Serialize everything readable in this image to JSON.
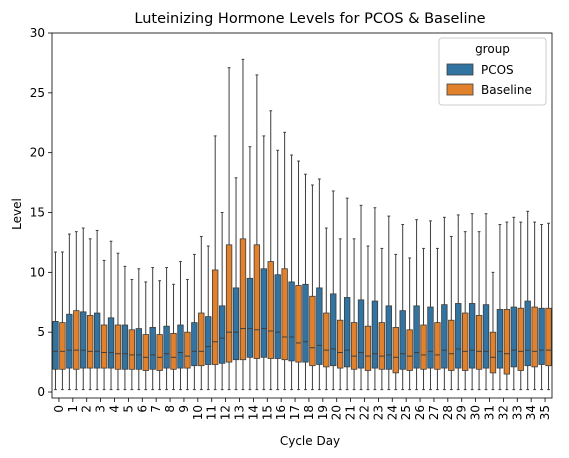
{
  "chart_data": {
    "type": "box",
    "title": "Luteinizing Hormone Levels for PCOS & Baseline",
    "xlabel": "Cycle Day",
    "ylabel": "Level",
    "ylim": [
      -0.5,
      30
    ],
    "yticks": [
      0,
      5,
      10,
      15,
      20,
      25,
      30
    ],
    "categories": [
      "0",
      "1",
      "2",
      "3",
      "4",
      "5",
      "6",
      "7",
      "8",
      "9",
      "10",
      "11",
      "12",
      "13",
      "14",
      "15",
      "16",
      "17",
      "18",
      "19",
      "20",
      "21",
      "22",
      "23",
      "24",
      "25",
      "26",
      "27",
      "28",
      "29",
      "30",
      "31",
      "32",
      "33",
      "34",
      "35"
    ],
    "legend": {
      "title": "group",
      "position": "top-right"
    },
    "grid": false,
    "series": [
      {
        "name": "PCOS",
        "color": "#3274a1",
        "boxes": [
          {
            "low": 0.2,
            "q1": 1.9,
            "med": 3.4,
            "q3": 5.9,
            "high": 11.7
          },
          {
            "low": 0.2,
            "q1": 2.0,
            "med": 3.5,
            "q3": 6.5,
            "high": 13.2
          },
          {
            "low": 0.2,
            "q1": 2.0,
            "med": 3.5,
            "q3": 6.7,
            "high": 13.7
          },
          {
            "low": 0.2,
            "q1": 2.0,
            "med": 3.4,
            "q3": 6.6,
            "high": 13.5
          },
          {
            "low": 0.2,
            "q1": 2.0,
            "med": 3.3,
            "q3": 6.2,
            "high": 12.6
          },
          {
            "low": 0.2,
            "q1": 1.9,
            "med": 3.2,
            "q3": 5.6,
            "high": 10.5
          },
          {
            "low": 0.2,
            "q1": 1.9,
            "med": 3.1,
            "q3": 5.3,
            "high": 10.3
          },
          {
            "low": 0.2,
            "q1": 1.9,
            "med": 3.1,
            "q3": 5.4,
            "high": 10.4
          },
          {
            "low": 0.2,
            "q1": 2.0,
            "med": 3.2,
            "q3": 5.5,
            "high": 10.4
          },
          {
            "low": 0.2,
            "q1": 2.0,
            "med": 3.3,
            "q3": 5.6,
            "high": 10.9
          },
          {
            "low": 0.2,
            "q1": 2.2,
            "med": 3.4,
            "q3": 5.8,
            "high": 11.5
          },
          {
            "low": 0.2,
            "q1": 2.3,
            "med": 3.8,
            "q3": 6.3,
            "high": 12.2
          },
          {
            "low": 0.2,
            "q1": 2.4,
            "med": 4.5,
            "q3": 7.2,
            "high": 15.0
          },
          {
            "low": 0.2,
            "q1": 2.7,
            "med": 5.0,
            "q3": 8.7,
            "high": 17.9
          },
          {
            "low": 0.2,
            "q1": 2.9,
            "med": 5.3,
            "q3": 9.5,
            "high": 20.5
          },
          {
            "low": 0.2,
            "q1": 2.9,
            "med": 5.3,
            "q3": 10.3,
            "high": 21.4
          },
          {
            "low": 0.2,
            "q1": 2.8,
            "med": 5.0,
            "q3": 9.8,
            "high": 20.2
          },
          {
            "low": 0.2,
            "q1": 2.6,
            "med": 4.6,
            "q3": 9.2,
            "high": 19.8
          },
          {
            "low": 0.2,
            "q1": 2.5,
            "med": 4.2,
            "q3": 9.0,
            "high": 18.2
          },
          {
            "low": 0.2,
            "q1": 2.3,
            "med": 3.9,
            "q3": 8.7,
            "high": 17.8
          },
          {
            "low": 0.2,
            "q1": 2.2,
            "med": 3.6,
            "q3": 8.2,
            "high": 16.8
          },
          {
            "low": 0.2,
            "q1": 2.1,
            "med": 3.5,
            "q3": 7.9,
            "high": 16.2
          },
          {
            "low": 0.2,
            "q1": 2.0,
            "med": 3.3,
            "q3": 7.7,
            "high": 15.6
          },
          {
            "low": 0.2,
            "q1": 2.0,
            "med": 3.2,
            "q3": 7.6,
            "high": 15.4
          },
          {
            "low": 0.2,
            "q1": 1.9,
            "med": 3.1,
            "q3": 7.2,
            "high": 14.7
          },
          {
            "low": 0.2,
            "q1": 1.9,
            "med": 3.2,
            "q3": 6.8,
            "high": 14.0
          },
          {
            "low": 0.2,
            "q1": 2.0,
            "med": 3.3,
            "q3": 7.2,
            "high": 14.4
          },
          {
            "low": 0.2,
            "q1": 2.0,
            "med": 3.4,
            "q3": 7.1,
            "high": 14.3
          },
          {
            "low": 0.2,
            "q1": 2.0,
            "med": 3.5,
            "q3": 7.3,
            "high": 14.6
          },
          {
            "low": 0.2,
            "q1": 2.0,
            "med": 3.6,
            "q3": 7.4,
            "high": 14.8
          },
          {
            "low": 0.2,
            "q1": 2.0,
            "med": 3.5,
            "q3": 7.4,
            "high": 14.9
          },
          {
            "low": 0.2,
            "q1": 2.0,
            "med": 3.4,
            "q3": 7.3,
            "high": 14.9
          },
          {
            "low": 0.2,
            "q1": 2.0,
            "med": 3.4,
            "q3": 6.9,
            "high": 14.0
          },
          {
            "low": 0.2,
            "q1": 2.1,
            "med": 3.5,
            "q3": 7.1,
            "high": 14.6
          },
          {
            "low": 0.2,
            "q1": 2.2,
            "med": 3.5,
            "q3": 7.6,
            "high": 15.1
          },
          {
            "low": 0.2,
            "q1": 2.3,
            "med": 3.5,
            "q3": 7.0,
            "high": 14.0
          }
        ]
      },
      {
        "name": "Baseline",
        "color": "#e1812c",
        "boxes": [
          {
            "low": 0.2,
            "q1": 1.9,
            "med": 3.4,
            "q3": 5.8,
            "high": 11.7
          },
          {
            "low": 0.2,
            "q1": 1.9,
            "med": 3.5,
            "q3": 6.8,
            "high": 13.4
          },
          {
            "low": 0.2,
            "q1": 2.0,
            "med": 3.4,
            "q3": 6.4,
            "high": 12.8
          },
          {
            "low": 0.2,
            "q1": 2.0,
            "med": 3.3,
            "q3": 5.6,
            "high": 11.0
          },
          {
            "low": 0.2,
            "q1": 1.9,
            "med": 3.2,
            "q3": 5.6,
            "high": 11.6
          },
          {
            "low": 0.2,
            "q1": 1.9,
            "med": 3.1,
            "q3": 5.2,
            "high": 9.4
          },
          {
            "low": 0.2,
            "q1": 1.8,
            "med": 2.9,
            "q3": 4.8,
            "high": 9.2
          },
          {
            "low": 0.2,
            "q1": 1.8,
            "med": 2.9,
            "q3": 4.8,
            "high": 9.3
          },
          {
            "low": 0.2,
            "q1": 1.9,
            "med": 2.9,
            "q3": 4.9,
            "high": 9.0
          },
          {
            "low": 0.2,
            "q1": 2.0,
            "med": 3.0,
            "q3": 5.0,
            "high": 9.4
          },
          {
            "low": 0.2,
            "q1": 2.2,
            "med": 3.4,
            "q3": 6.6,
            "high": 13.0
          },
          {
            "low": 0.2,
            "q1": 2.3,
            "med": 4.2,
            "q3": 10.2,
            "high": 21.4
          },
          {
            "low": 0.2,
            "q1": 2.5,
            "med": 5.0,
            "q3": 12.3,
            "high": 27.1
          },
          {
            "low": 0.2,
            "q1": 2.7,
            "med": 5.3,
            "q3": 12.8,
            "high": 27.8
          },
          {
            "low": 0.2,
            "q1": 2.8,
            "med": 5.2,
            "q3": 12.3,
            "high": 26.5
          },
          {
            "low": 0.2,
            "q1": 2.8,
            "med": 5.1,
            "q3": 10.9,
            "high": 23.5
          },
          {
            "low": 0.2,
            "q1": 2.7,
            "med": 4.6,
            "q3": 10.3,
            "high": 21.7
          },
          {
            "low": 0.2,
            "q1": 2.5,
            "med": 4.1,
            "q3": 8.9,
            "high": 19.3
          },
          {
            "low": 0.2,
            "q1": 2.2,
            "med": 3.7,
            "q3": 8.0,
            "high": 17.3
          },
          {
            "low": 0.2,
            "q1": 2.1,
            "med": 3.5,
            "q3": 6.6,
            "high": 13.7
          },
          {
            "low": 0.2,
            "q1": 2.0,
            "med": 3.3,
            "q3": 6.0,
            "high": 12.8
          },
          {
            "low": 0.2,
            "q1": 1.9,
            "med": 3.0,
            "q3": 5.8,
            "high": 12.8
          },
          {
            "low": 0.2,
            "q1": 1.8,
            "med": 3.0,
            "q3": 5.5,
            "high": 12.2
          },
          {
            "low": 0.2,
            "q1": 1.9,
            "med": 3.0,
            "q3": 5.8,
            "high": 12.0
          },
          {
            "low": 0.2,
            "q1": 1.6,
            "med": 2.9,
            "q3": 5.4,
            "high": 11.5
          },
          {
            "low": 0.2,
            "q1": 1.8,
            "med": 3.0,
            "q3": 5.2,
            "high": 11.2
          },
          {
            "low": 0.2,
            "q1": 1.9,
            "med": 3.1,
            "q3": 5.6,
            "high": 12.0
          },
          {
            "low": 0.2,
            "q1": 1.9,
            "med": 3.1,
            "q3": 5.8,
            "high": 12.0
          },
          {
            "low": 0.2,
            "q1": 1.8,
            "med": 3.2,
            "q3": 6.0,
            "high": 13.0
          },
          {
            "low": 0.2,
            "q1": 1.8,
            "med": 3.4,
            "q3": 6.6,
            "high": 13.4
          },
          {
            "low": 0.2,
            "q1": 1.9,
            "med": 3.4,
            "q3": 6.4,
            "high": 13.4
          },
          {
            "low": 0.2,
            "q1": 1.6,
            "med": 2.9,
            "q3": 5.0,
            "high": 10.0
          },
          {
            "low": 0.2,
            "q1": 1.5,
            "med": 3.2,
            "q3": 6.9,
            "high": 14.2
          },
          {
            "low": 0.2,
            "q1": 1.8,
            "med": 3.4,
            "q3": 7.0,
            "high": 14.2
          },
          {
            "low": 0.2,
            "q1": 2.1,
            "med": 3.4,
            "q3": 7.1,
            "high": 14.2
          },
          {
            "low": 0.2,
            "q1": 2.2,
            "med": 3.5,
            "q3": 7.0,
            "high": 14.1
          }
        ]
      }
    ]
  }
}
